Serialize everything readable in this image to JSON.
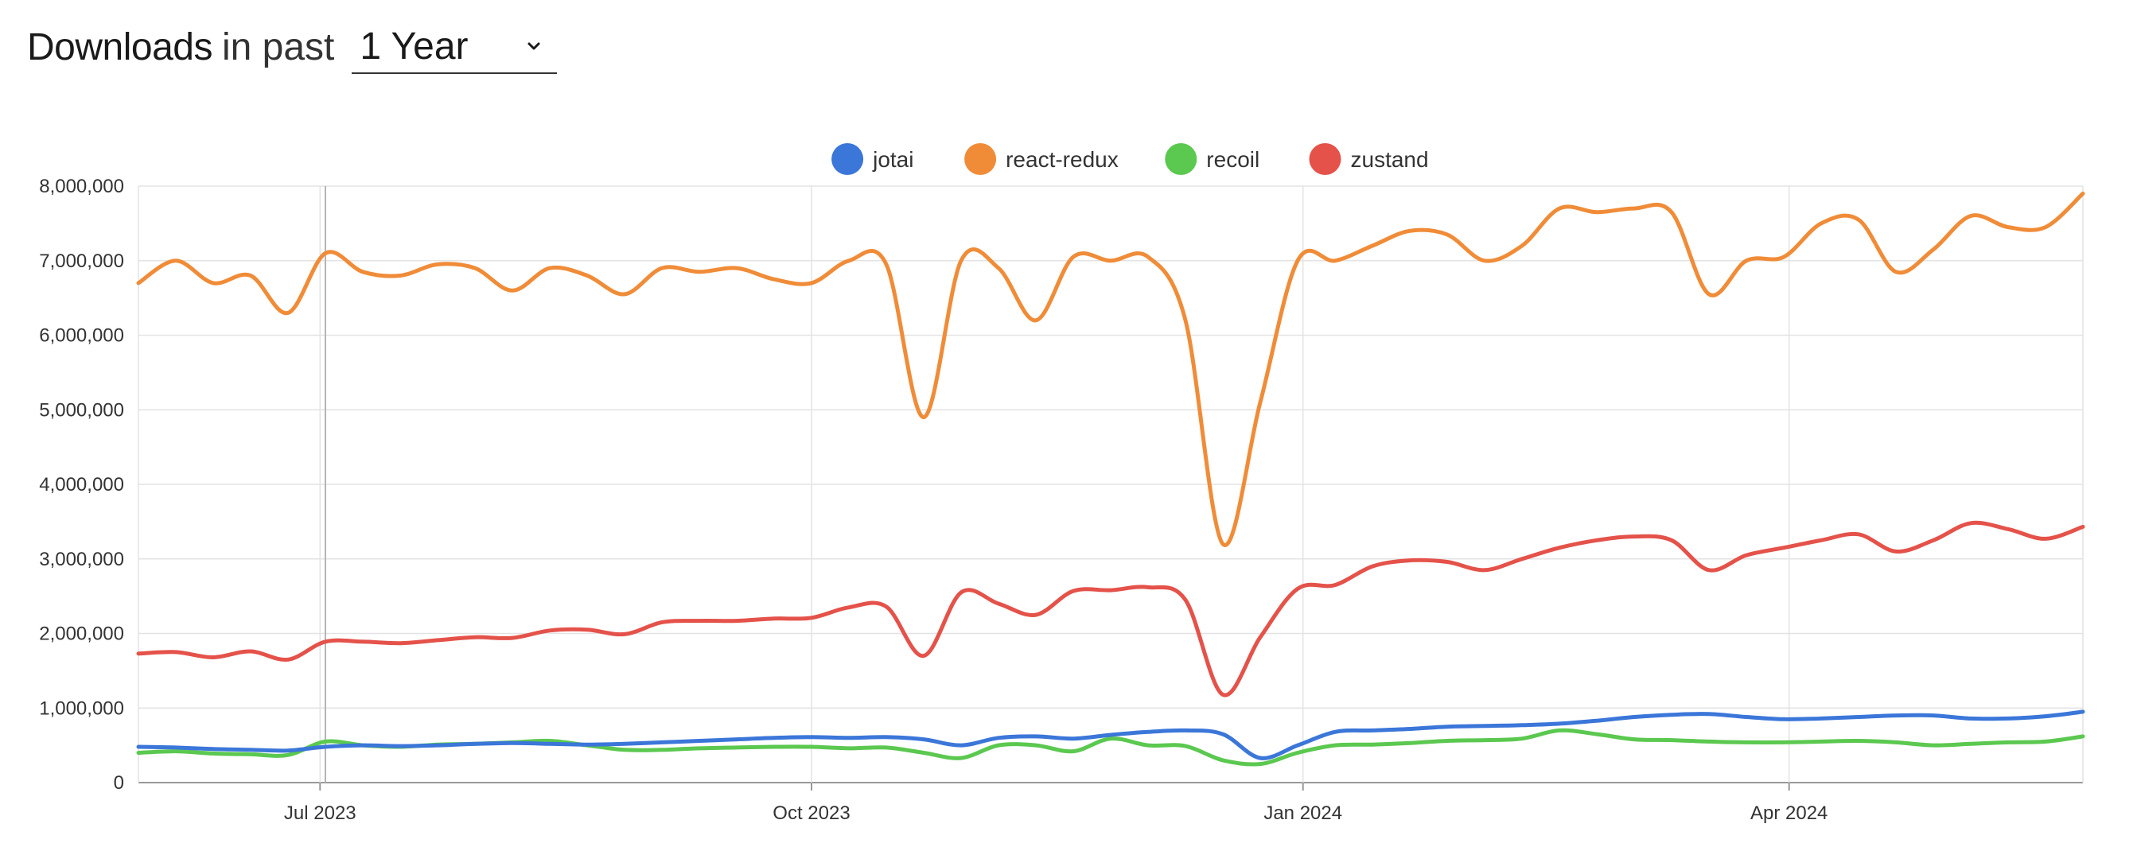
{
  "header": {
    "title_strong": "Downloads",
    "title_light": "in past",
    "period": "1 Year"
  },
  "colors": {
    "jotai": "#3b76d9",
    "react-redux": "#f08c38",
    "recoil": "#5bc84f",
    "zustand": "#e4524a",
    "grid": "#e3e3e3",
    "axis": "#999999"
  },
  "chart_data": {
    "type": "line",
    "grid": true,
    "legend_position": "top-center",
    "ylim": [
      0,
      8000000
    ],
    "yticks": [
      "0",
      "1,000,000",
      "2,000,000",
      "3,000,000",
      "4,000,000",
      "5,000,000",
      "6,000,000",
      "7,000,000",
      "8,000,000"
    ],
    "xlim": [
      "2023-05-28",
      "2024-05-26"
    ],
    "xticks": [
      {
        "date": "2023-07-01",
        "label": "Jul 2023"
      },
      {
        "date": "2023-10-01",
        "label": "Oct 2023"
      },
      {
        "date": "2024-01-01",
        "label": "Jan 2024"
      },
      {
        "date": "2024-04-01",
        "label": "Apr 2024"
      }
    ],
    "x": [
      "2023-05-28",
      "2023-06-04",
      "2023-06-11",
      "2023-06-18",
      "2023-06-25",
      "2023-07-02",
      "2023-07-09",
      "2023-07-16",
      "2023-07-23",
      "2023-07-30",
      "2023-08-06",
      "2023-08-13",
      "2023-08-20",
      "2023-08-27",
      "2023-09-03",
      "2023-09-10",
      "2023-09-17",
      "2023-09-24",
      "2023-10-01",
      "2023-10-08",
      "2023-10-15",
      "2023-10-22",
      "2023-10-29",
      "2023-11-05",
      "2023-11-12",
      "2023-11-19",
      "2023-11-26",
      "2023-12-03",
      "2023-12-10",
      "2023-12-17",
      "2023-12-24",
      "2023-12-31",
      "2024-01-07",
      "2024-01-14",
      "2024-01-21",
      "2024-01-28",
      "2024-02-04",
      "2024-02-11",
      "2024-02-18",
      "2024-02-25",
      "2024-03-03",
      "2024-03-10",
      "2024-03-17",
      "2024-03-24",
      "2024-03-31",
      "2024-04-07",
      "2024-04-14",
      "2024-04-21",
      "2024-04-28",
      "2024-05-05",
      "2024-05-12",
      "2024-05-19",
      "2024-05-26"
    ],
    "series": [
      {
        "name": "jotai",
        "values": [
          480000,
          470000,
          450000,
          440000,
          430000,
          480000,
          500000,
          490000,
          500000,
          520000,
          530000,
          520000,
          510000,
          520000,
          540000,
          560000,
          580000,
          600000,
          610000,
          600000,
          610000,
          580000,
          500000,
          600000,
          620000,
          590000,
          640000,
          680000,
          700000,
          650000,
          330000,
          500000,
          680000,
          700000,
          720000,
          750000,
          760000,
          770000,
          790000,
          830000,
          880000,
          910000,
          920000,
          880000,
          850000,
          860000,
          880000,
          900000,
          900000,
          860000,
          860000,
          890000,
          950000
        ]
      },
      {
        "name": "react-redux",
        "values": [
          6700000,
          7000000,
          6700000,
          6800000,
          6300000,
          7100000,
          6850000,
          6800000,
          6950000,
          6900000,
          6600000,
          6900000,
          6800000,
          6550000,
          6900000,
          6850000,
          6900000,
          6750000,
          6700000,
          7000000,
          6950000,
          4900000,
          7000000,
          6900000,
          6200000,
          7050000,
          7000000,
          7050000,
          6200000,
          3200000,
          5100000,
          7000000,
          7000000,
          7200000,
          7400000,
          7350000,
          7000000,
          7200000,
          7700000,
          7650000,
          7700000,
          7650000,
          6550000,
          7000000,
          7050000,
          7500000,
          7550000,
          6850000,
          7150000,
          7600000,
          7450000,
          7450000,
          7900000
        ]
      },
      {
        "name": "recoil",
        "values": [
          400000,
          420000,
          390000,
          380000,
          370000,
          550000,
          500000,
          480000,
          510000,
          520000,
          540000,
          560000,
          500000,
          440000,
          440000,
          460000,
          470000,
          480000,
          480000,
          460000,
          470000,
          400000,
          330000,
          500000,
          500000,
          420000,
          590000,
          500000,
          490000,
          300000,
          250000,
          400000,
          500000,
          510000,
          530000,
          560000,
          570000,
          590000,
          700000,
          650000,
          580000,
          570000,
          550000,
          540000,
          540000,
          550000,
          560000,
          540000,
          500000,
          520000,
          540000,
          550000,
          620000
        ]
      },
      {
        "name": "zustand",
        "values": [
          1730000,
          1750000,
          1680000,
          1760000,
          1650000,
          1890000,
          1890000,
          1870000,
          1910000,
          1950000,
          1940000,
          2040000,
          2050000,
          1990000,
          2150000,
          2170000,
          2170000,
          2200000,
          2210000,
          2350000,
          2360000,
          1700000,
          2550000,
          2400000,
          2250000,
          2570000,
          2580000,
          2620000,
          2450000,
          1180000,
          1950000,
          2600000,
          2650000,
          2900000,
          2980000,
          2960000,
          2850000,
          3000000,
          3150000,
          3250000,
          3300000,
          3250000,
          2850000,
          3050000,
          3150000,
          3250000,
          3330000,
          3100000,
          3250000,
          3480000,
          3400000,
          3270000,
          3430000
        ]
      }
    ]
  }
}
